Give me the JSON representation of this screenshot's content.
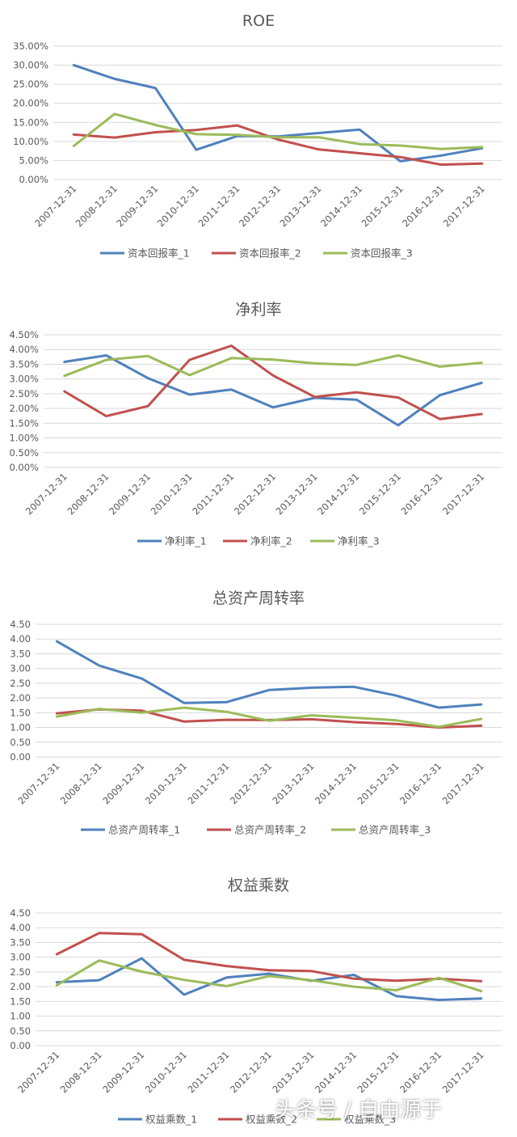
{
  "chart_data": [
    {
      "type": "line",
      "title": "ROE",
      "categories": [
        "2007-12-31",
        "2008-12-31",
        "2009-12-31",
        "2010-12-31",
        "2011-12-31",
        "2012-12-31",
        "2013-12-31",
        "2014-12-31",
        "2015-12-31",
        "2016-12-31",
        "2017-12-31"
      ],
      "yticks": [
        "35.00%",
        "30.00%",
        "25.00%",
        "20.00%",
        "15.00%",
        "10.00%",
        "5.00%",
        "0.00%"
      ],
      "ylim": [
        0,
        0.35
      ],
      "grid": true,
      "legend_position": "bottom",
      "series": [
        {
          "name": "资本回报率_1",
          "color": "#4F81BD",
          "values": [
            0.3,
            0.264,
            0.24,
            0.078,
            0.114,
            0.113,
            0.122,
            0.131,
            0.048,
            0.063,
            0.082
          ]
        },
        {
          "name": "资本回报率_2",
          "color": "#C0504D",
          "values": [
            0.118,
            0.11,
            0.124,
            0.13,
            0.142,
            0.105,
            0.079,
            0.069,
            0.059,
            0.039,
            0.042
          ]
        },
        {
          "name": "资本回报率_3",
          "color": "#9BBB59",
          "values": [
            0.088,
            0.172,
            0.143,
            0.119,
            0.117,
            0.111,
            0.111,
            0.093,
            0.089,
            0.08,
            0.085
          ]
        }
      ]
    },
    {
      "type": "line",
      "title": "净利率",
      "categories": [
        "2007-12-31",
        "2008-12-31",
        "2009-12-31",
        "2010-12-31",
        "2011-12-31",
        "2012-12-31",
        "2013-12-31",
        "2014-12-31",
        "2015-12-31",
        "2016-12-31",
        "2017-12-31"
      ],
      "yticks": [
        "4.50%",
        "4.00%",
        "3.50%",
        "3.00%",
        "2.50%",
        "2.00%",
        "1.50%",
        "1.00%",
        "0.50%",
        "0.00%"
      ],
      "ylim": [
        0,
        0.045
      ],
      "grid": true,
      "legend_position": "bottom",
      "series": [
        {
          "name": "净利率_1",
          "color": "#4F81BD",
          "values": [
            0.0358,
            0.038,
            0.0303,
            0.0247,
            0.0264,
            0.0204,
            0.0236,
            0.023,
            0.0143,
            0.0245,
            0.0287
          ]
        },
        {
          "name": "净利率_2",
          "color": "#C0504D",
          "values": [
            0.0258,
            0.0174,
            0.0208,
            0.0365,
            0.0413,
            0.0312,
            0.0239,
            0.0255,
            0.0237,
            0.0164,
            0.0181
          ]
        },
        {
          "name": "净利率_3",
          "color": "#9BBB59",
          "values": [
            0.0311,
            0.0365,
            0.0378,
            0.0313,
            0.0371,
            0.0366,
            0.0353,
            0.0348,
            0.038,
            0.0342,
            0.0355
          ]
        }
      ]
    },
    {
      "type": "line",
      "title": "总资产周转率",
      "categories": [
        "2007-12-31",
        "2008-12-31",
        "2009-12-31",
        "2010-12-31",
        "2011-12-31",
        "2012-12-31",
        "2013-12-31",
        "2014-12-31",
        "2015-12-31",
        "2016-12-31",
        "2017-12-31"
      ],
      "yticks": [
        "4.50",
        "4.00",
        "3.50",
        "3.00",
        "2.50",
        "2.00",
        "1.50",
        "1.00",
        "0.50",
        "0.00"
      ],
      "ylim": [
        0,
        4.5
      ],
      "grid": true,
      "legend_position": "bottom",
      "series": [
        {
          "name": "总资产周转率_1",
          "color": "#4F81BD",
          "values": [
            3.92,
            3.1,
            2.66,
            1.83,
            1.86,
            2.27,
            2.35,
            2.38,
            2.08,
            1.67,
            1.78
          ]
        },
        {
          "name": "总资产周转率_2",
          "color": "#C0504D",
          "values": [
            1.48,
            1.61,
            1.57,
            1.2,
            1.26,
            1.25,
            1.28,
            1.18,
            1.12,
            1.0,
            1.06
          ]
        },
        {
          "name": "总资产周转率_3",
          "color": "#9BBB59",
          "values": [
            1.37,
            1.63,
            1.5,
            1.67,
            1.53,
            1.23,
            1.41,
            1.33,
            1.24,
            1.02,
            1.29
          ]
        }
      ]
    },
    {
      "type": "line",
      "title": "权益乘数",
      "categories": [
        "2007-12-31",
        "2008-12-31",
        "2009-12-31",
        "2010-12-31",
        "2011-12-31",
        "2012-12-31",
        "2013-12-31",
        "2014-12-31",
        "2015-12-31",
        "2016-12-31",
        "2017-12-31"
      ],
      "yticks": [
        "4.50",
        "4.00",
        "3.50",
        "3.00",
        "2.50",
        "2.00",
        "1.50",
        "1.00",
        "0.50",
        "0.00"
      ],
      "ylim": [
        0,
        4.5
      ],
      "grid": true,
      "legend_position": "bottom",
      "series": [
        {
          "name": "权益乘数_1",
          "color": "#4F81BD",
          "values": [
            2.15,
            2.22,
            2.96,
            1.73,
            2.31,
            2.44,
            2.2,
            2.4,
            1.68,
            1.55,
            1.6
          ]
        },
        {
          "name": "权益乘数_2",
          "color": "#C0504D",
          "values": [
            3.1,
            3.82,
            3.78,
            2.91,
            2.7,
            2.56,
            2.53,
            2.27,
            2.2,
            2.27,
            2.19
          ]
        },
        {
          "name": "权益乘数_3",
          "color": "#9BBB59",
          "values": [
            2.05,
            2.89,
            2.51,
            2.23,
            2.02,
            2.36,
            2.22,
            2.0,
            1.88,
            2.3,
            1.85
          ]
        }
      ]
    }
  ],
  "watermark": "头条号 / 自由源于"
}
